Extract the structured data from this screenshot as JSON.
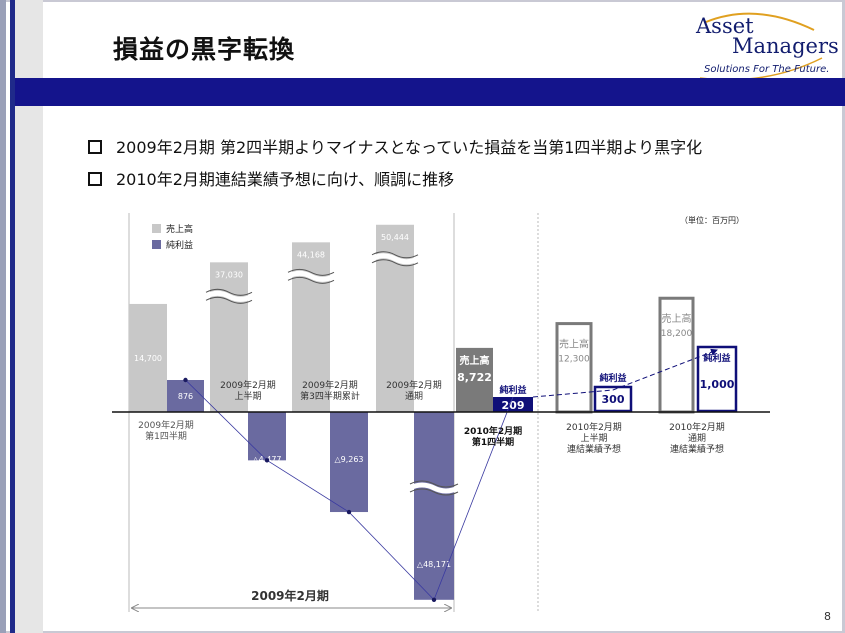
{
  "header": {
    "title": "損益の黒字転換",
    "logo_line1": "Asset",
    "logo_line2": "Managers",
    "logo_tagline": "Solutions For The Future."
  },
  "bullets": [
    "2009年2月期 第2四半期よりマイナスとなっていた損益を当第1四半期より黒字化",
    "2010年2月期連結業績予想に向け、順調に推移"
  ],
  "page_number": "8",
  "chart_data": {
    "type": "bar",
    "unit_label": "（単位：百万円）",
    "legend": [
      "売上高",
      "純利益"
    ],
    "colors": {
      "revenue": "#c8c8c8",
      "net_income": "#6a6aa0",
      "actual_revenue": "#7a7a7a",
      "actual_net": "#0f0f78",
      "forecast_border": "#0f0f78",
      "forecast_rev_border": "#7a7a7a"
    },
    "categories": [
      "2009年2月期 第1四半期",
      "2009年2月期 上半期",
      "2009年2月期 第3四半期累計",
      "2009年2月期 通期",
      "2010年2月期 第1四半期",
      "2010年2月期 上半期 連結業績予想",
      "2010年2月期 通期 連結業績予想"
    ],
    "category_lines": [
      [
        "2009年2月期",
        "第1四半期"
      ],
      [
        "2009年2月期",
        "上半期"
      ],
      [
        "2009年2月期",
        "第3四半期累計"
      ],
      [
        "2009年2月期",
        "通期"
      ],
      [
        "2010年2月期",
        "第1四半期"
      ],
      [
        "2010年2月期",
        "上半期",
        "連結業績予想"
      ],
      [
        "2010年2月期",
        "通期",
        "連結業績予想"
      ]
    ],
    "series": [
      {
        "name": "売上高",
        "values": [
          14700,
          37030,
          44168,
          50444,
          8722,
          12300,
          18200
        ],
        "labels": [
          "14,700",
          "37,030",
          "44,168",
          "50,444",
          "8,722",
          "12,300",
          "18,200"
        ]
      },
      {
        "name": "純利益",
        "values": [
          876,
          -4477,
          -9263,
          -48171,
          209,
          300,
          1000
        ],
        "labels": [
          "876",
          "△4,477",
          "△9,263",
          "△48,171",
          "209",
          "300",
          "1,000"
        ]
      }
    ],
    "series_short_labels": {
      "revenue": "売上高",
      "net_income": "純利益"
    },
    "bracket_label": "2009年2月期"
  }
}
